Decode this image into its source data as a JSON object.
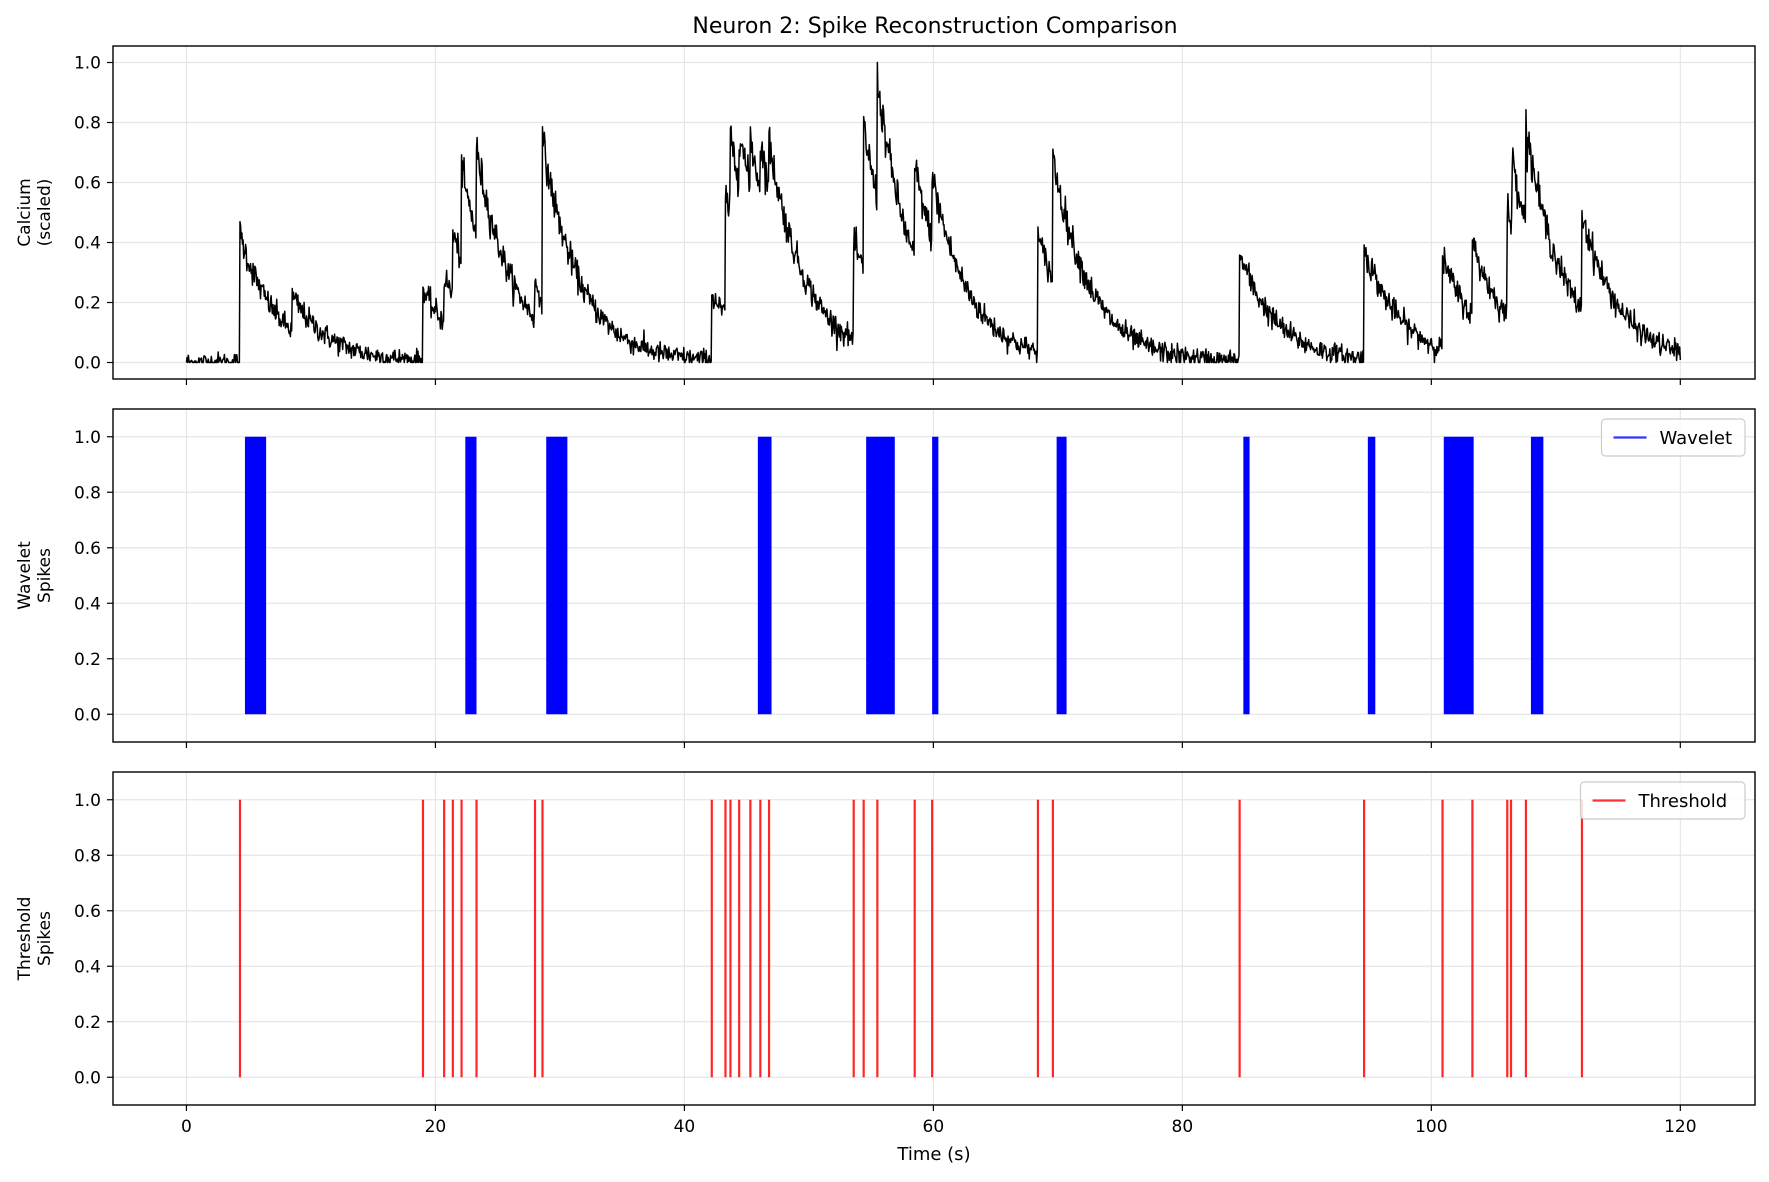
{
  "chart_data": [
    {
      "type": "line",
      "title": "Neuron 2: Spike Reconstruction Comparison",
      "xlabel": "",
      "ylabel_lines": [
        "Calcium",
        "(scaled)"
      ],
      "xlim": [
        -5.9,
        126.0
      ],
      "ylim": [
        -0.055,
        1.055
      ],
      "yticks": [
        0.0,
        0.2,
        0.4,
        0.6,
        0.8,
        1.0
      ],
      "ytick_labels": [
        "0.0",
        "0.2",
        "0.4",
        "0.6",
        "0.8",
        "1.0"
      ],
      "grid": true,
      "series": [
        {
          "color": "#000000",
          "baseline_noise": 0.015,
          "events": [
            [
              4.3,
              0.37
            ],
            [
              8.5,
              0.1
            ],
            [
              19.0,
              0.2
            ],
            [
              20.7,
              0.13
            ],
            [
              21.4,
              0.18
            ],
            [
              22.1,
              0.26
            ],
            [
              23.3,
              0.24
            ],
            [
              28.0,
              0.1
            ],
            [
              28.6,
              0.45
            ],
            [
              42.2,
              0.19
            ],
            [
              43.3,
              0.35
            ],
            [
              43.7,
              0.23
            ],
            [
              44.4,
              0.16
            ],
            [
              45.3,
              0.15
            ],
            [
              46.1,
              0.14
            ],
            [
              46.8,
              0.13
            ],
            [
              53.6,
              0.28
            ],
            [
              54.4,
              0.42
            ],
            [
              55.5,
              0.34
            ],
            [
              58.5,
              0.27
            ],
            [
              59.9,
              0.18
            ],
            [
              68.4,
              0.33
            ],
            [
              69.6,
              0.35
            ],
            [
              84.6,
              0.31
            ],
            [
              94.6,
              0.32
            ],
            [
              100.9,
              0.26
            ],
            [
              103.3,
              0.21
            ],
            [
              106.1,
              0.31
            ],
            [
              106.5,
              0.2
            ],
            [
              107.6,
              0.27
            ],
            [
              112.1,
              0.28
            ]
          ],
          "tau_s": 3.0,
          "normalize_max": 1.0
        }
      ]
    },
    {
      "type": "bar",
      "xlabel": "",
      "ylabel_lines": [
        "Wavelet",
        "Spikes"
      ],
      "xlim": [
        -5.9,
        126.0
      ],
      "ylim": [
        -0.1,
        1.1
      ],
      "yticks": [
        0.0,
        0.2,
        0.4,
        0.6,
        0.8,
        1.0
      ],
      "ytick_labels": [
        "0.0",
        "0.2",
        "0.4",
        "0.6",
        "0.8",
        "1.0"
      ],
      "grid": true,
      "legend": {
        "position": "top-right",
        "entries": [
          {
            "label": "Wavelet",
            "color": "#0000ff"
          }
        ]
      },
      "series": [
        {
          "name": "Wavelet",
          "color": "#0000ff",
          "spike_value": 1.0,
          "bursts": [
            [
              4.7,
              6.4
            ],
            [
              22.4,
              23.3
            ],
            [
              28.9,
              30.6
            ],
            [
              45.9,
              47.0
            ],
            [
              54.6,
              56.9
            ],
            [
              59.9,
              60.4
            ],
            [
              69.9,
              70.7
            ],
            [
              84.9,
              85.4
            ],
            [
              94.9,
              95.5
            ],
            [
              101.0,
              103.4
            ],
            [
              108.0,
              109.0
            ]
          ]
        }
      ]
    },
    {
      "type": "bar",
      "xlabel": "Time (s)",
      "ylabel_lines": [
        "Threshold",
        "Spikes"
      ],
      "xlim": [
        -5.9,
        126.0
      ],
      "ylim": [
        -0.1,
        1.1
      ],
      "xticks": [
        0,
        20,
        40,
        60,
        80,
        100,
        120
      ],
      "xtick_labels": [
        "0",
        "20",
        "40",
        "60",
        "80",
        "100",
        "120"
      ],
      "yticks": [
        0.0,
        0.2,
        0.4,
        0.6,
        0.8,
        1.0
      ],
      "ytick_labels": [
        "0.0",
        "0.2",
        "0.4",
        "0.6",
        "0.8",
        "1.0"
      ],
      "grid": true,
      "legend": {
        "position": "top-right",
        "entries": [
          {
            "label": "Threshold",
            "color": "#ff0000"
          }
        ]
      },
      "series": [
        {
          "name": "Threshold",
          "color": "#ff0000",
          "spike_value": 1.0,
          "spike_times": [
            4.3,
            19.0,
            20.7,
            21.4,
            22.1,
            23.3,
            28.0,
            28.6,
            42.2,
            43.3,
            43.7,
            44.4,
            45.3,
            46.1,
            46.8,
            53.6,
            54.4,
            55.5,
            58.5,
            59.9,
            68.4,
            69.6,
            84.6,
            94.6,
            100.9,
            103.3,
            106.1,
            106.4,
            107.6,
            112.1
          ]
        }
      ]
    }
  ]
}
